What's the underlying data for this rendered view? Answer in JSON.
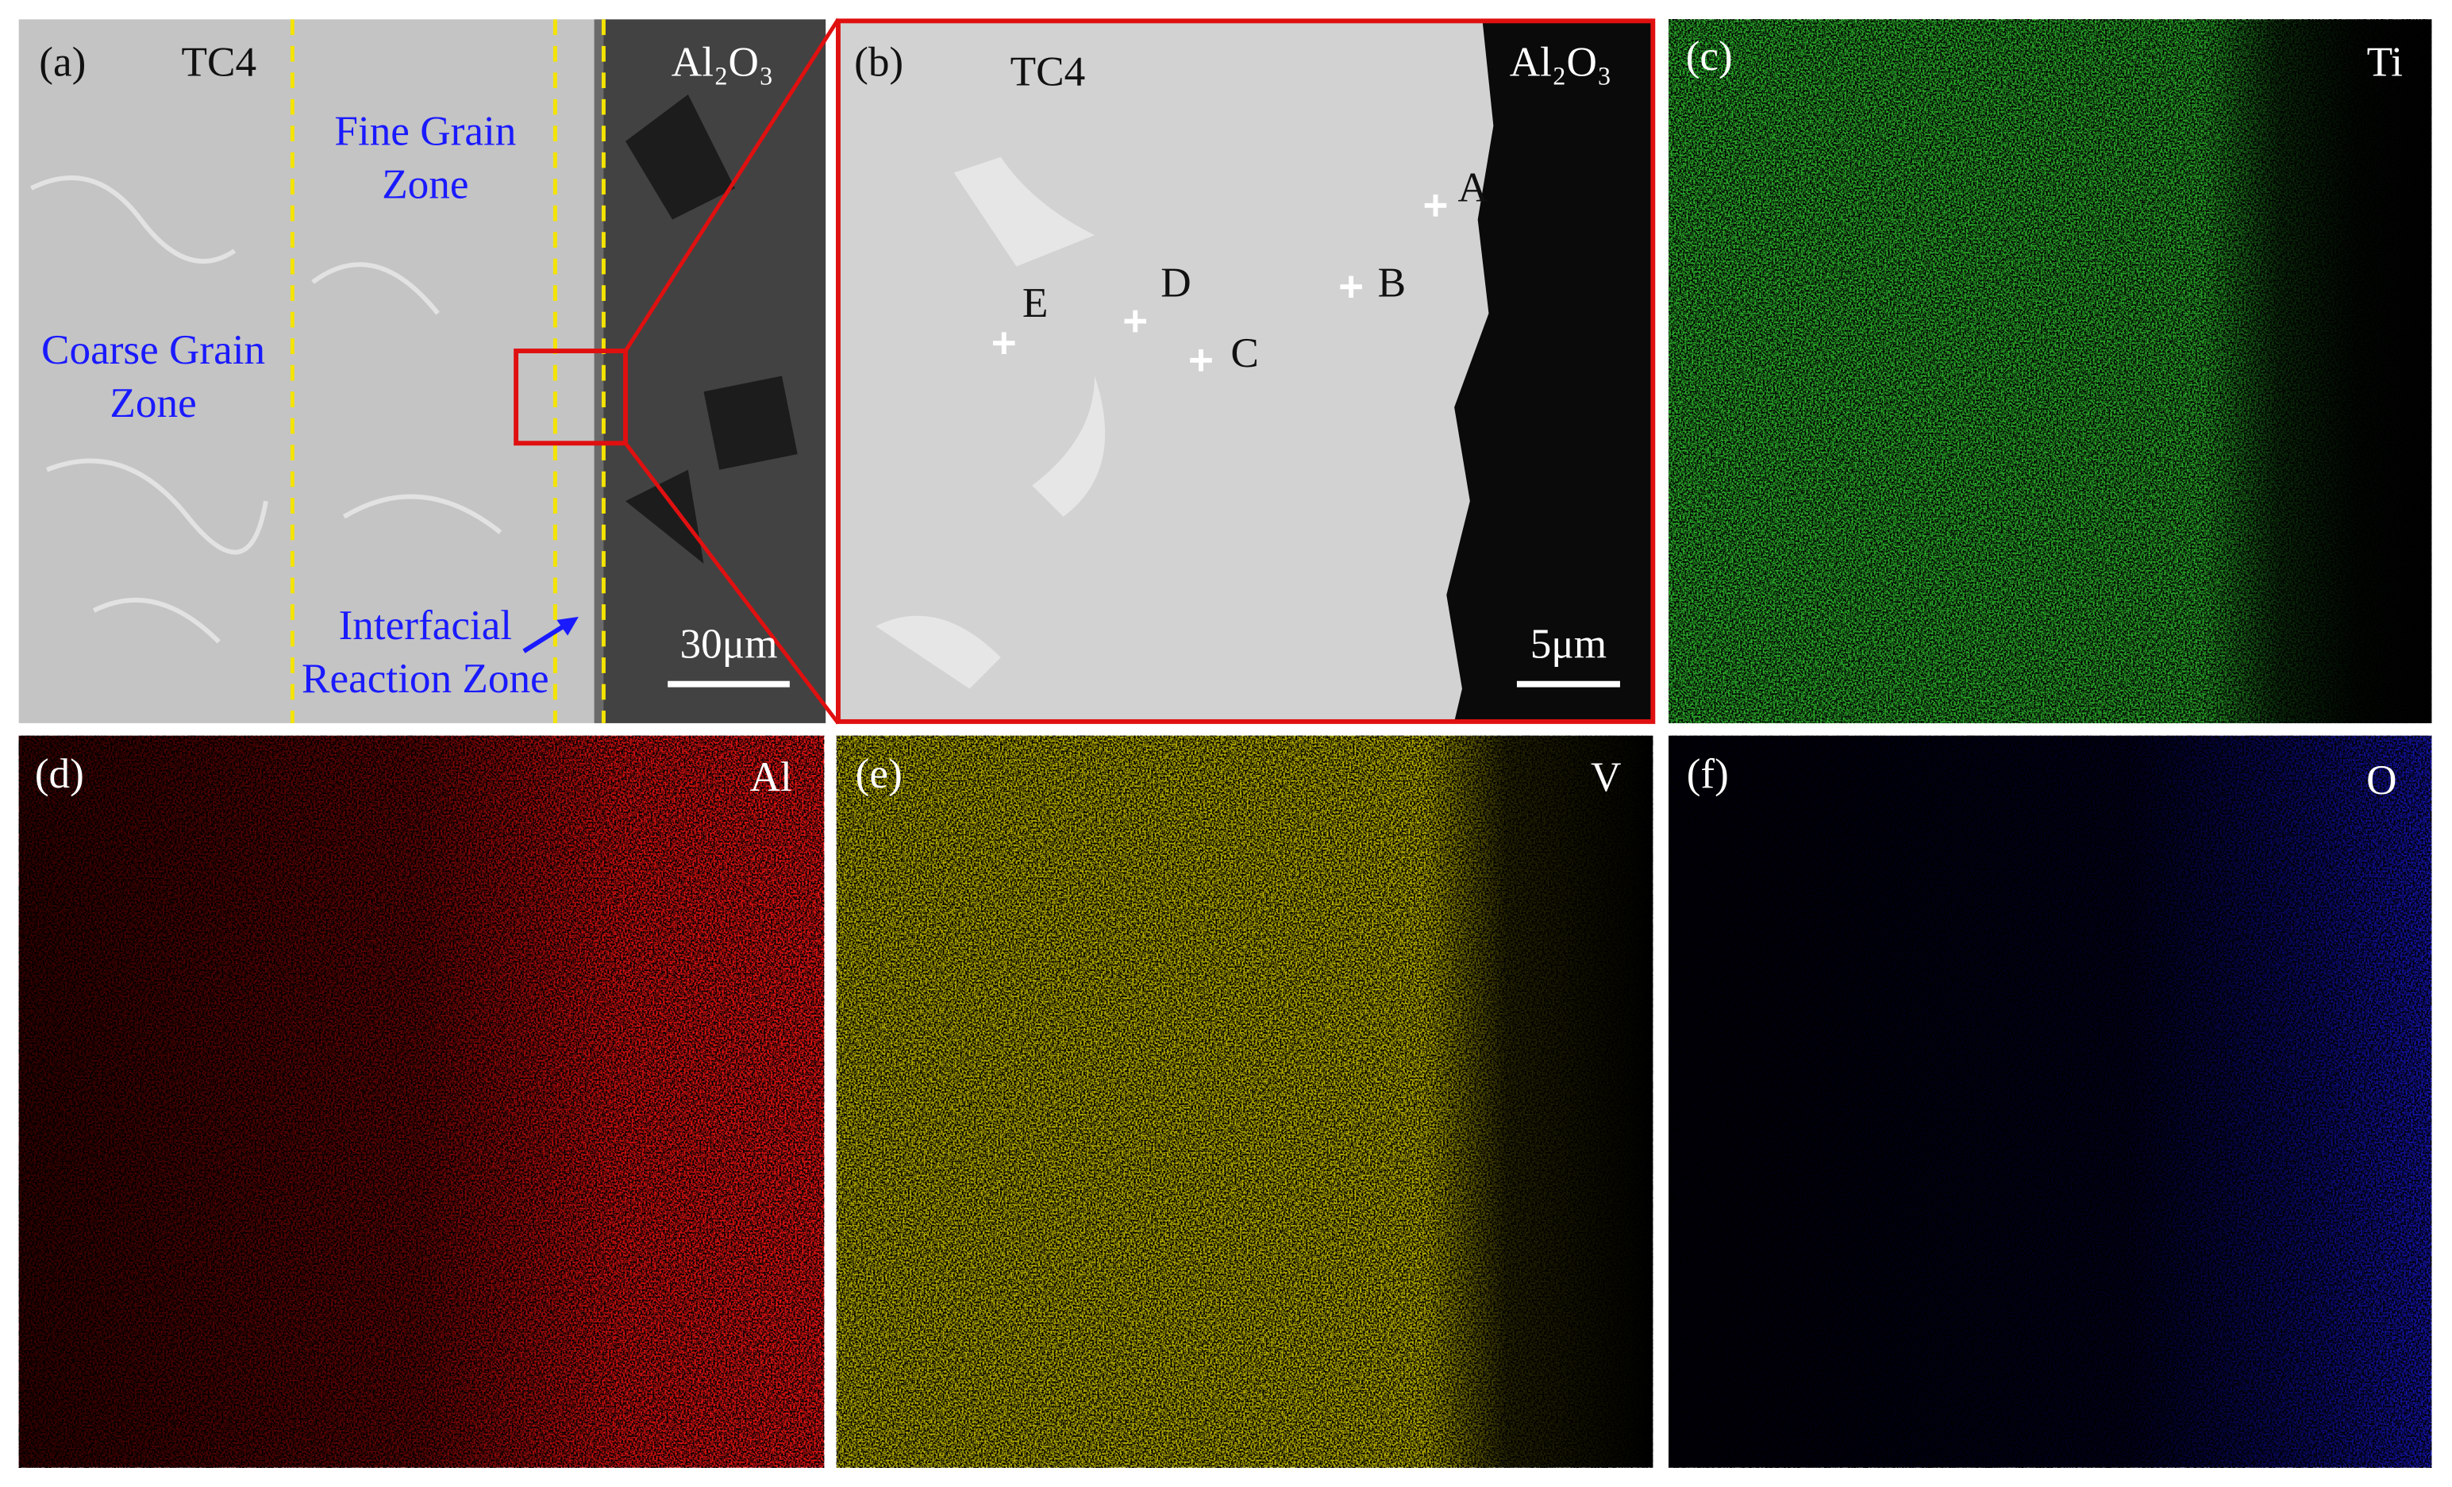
{
  "panels": [
    {
      "label": "(a)",
      "left_material": "TC4",
      "right_material": "Al₂O₃",
      "zones": [
        [
          "Coarse Grain",
          "Zone"
        ],
        [
          "Fine Grain",
          "Zone"
        ],
        [
          "Interfacial",
          "Reaction Zone"
        ]
      ],
      "scale_bar": "30μm"
    },
    {
      "label": "(b)",
      "left_material": "TC4",
      "right_material": "Al₂O₃",
      "points": [
        "A",
        "B",
        "C",
        "D",
        "E"
      ],
      "scale_bar": "5μm"
    },
    {
      "label": "(c)",
      "element": "Ti"
    },
    {
      "label": "(d)",
      "element": "Al"
    },
    {
      "label": "(e)",
      "element": "V"
    },
    {
      "label": "(f)",
      "element": "O"
    }
  ]
}
